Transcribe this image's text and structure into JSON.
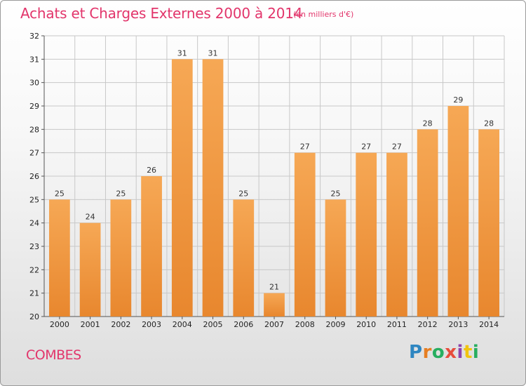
{
  "chart_data": {
    "type": "bar",
    "title": "Achats et Charges Externes 2000 à 2014",
    "subtitle": "(en milliers d'€)",
    "categories": [
      "2000",
      "2001",
      "2002",
      "2003",
      "2004",
      "2005",
      "2006",
      "2007",
      "2008",
      "2009",
      "2010",
      "2011",
      "2012",
      "2013",
      "2014"
    ],
    "values": [
      25,
      24,
      25,
      26,
      31,
      31,
      25,
      21,
      27,
      25,
      27,
      27,
      28,
      29,
      28
    ],
    "yticks": [
      20,
      21,
      22,
      23,
      24,
      25,
      26,
      27,
      28,
      29,
      30,
      31,
      32
    ],
    "ylim": [
      20,
      32
    ],
    "xlabel": "",
    "ylabel": "",
    "grid": true,
    "bar_color": "#e8872e",
    "bar_color_light": "#f6a855",
    "grid_color": "#c8c8c8"
  },
  "footer": {
    "town": "COMBES",
    "brand": "Proxiti",
    "brand_colors": [
      "#2e86c1",
      "#e67e22",
      "#27ae60",
      "#e74c3c",
      "#8e44ad",
      "#f1c40f",
      "#27ae60"
    ]
  }
}
